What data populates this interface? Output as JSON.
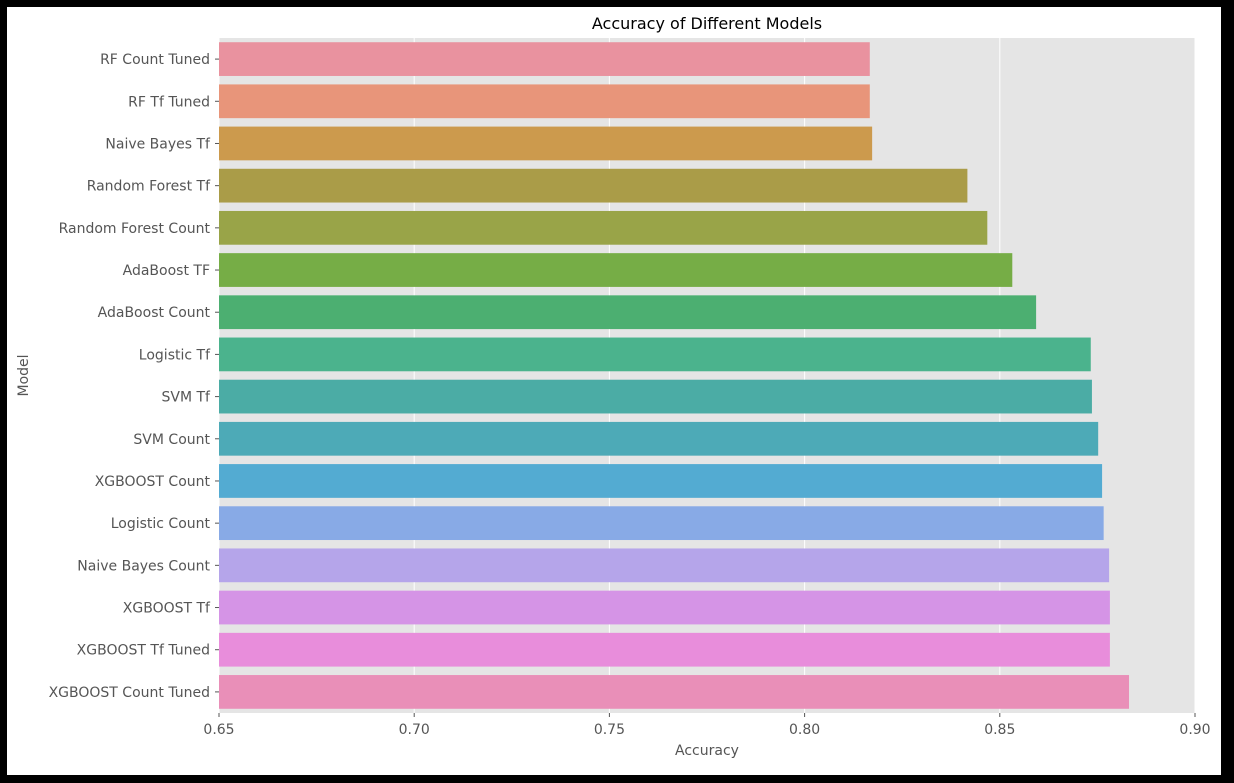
{
  "chart_data": {
    "type": "bar",
    "orientation": "horizontal",
    "title": "Accuracy of Different Models",
    "xlabel": "Accuracy",
    "ylabel": "Model",
    "xlim": [
      0.65,
      0.9
    ],
    "xticks": [
      "0.65",
      "0.70",
      "0.75",
      "0.80",
      "0.85",
      "0.90"
    ],
    "grid": true,
    "background": "#e5e5e5",
    "categories": [
      "RF Count Tuned",
      "RF Tf Tuned",
      "Naive Bayes Tf",
      "Random Forest Tf",
      "Random Forest Count",
      "AdaBoost TF",
      "AdaBoost Count",
      "Logistic Tf",
      "SVM Tf",
      "SVM Count",
      "XGBOOST Count",
      "Logistic Count",
      "Naive Bayes Count",
      "XGBOOST Tf",
      "XGBOOST Tf Tuned",
      "XGBOOST Count Tuned"
    ],
    "values": [
      0.8167,
      0.8167,
      0.8173,
      0.8417,
      0.8468,
      0.8532,
      0.8593,
      0.8733,
      0.8736,
      0.8752,
      0.8762,
      0.8766,
      0.878,
      0.8782,
      0.8782,
      0.8831
    ],
    "colors": [
      "#e9929f",
      "#e8957a",
      "#cc9a4d",
      "#aa9c48",
      "#99a448",
      "#76ad46",
      "#4caf71",
      "#4bb38d",
      "#4baca5",
      "#4daab7",
      "#53abd2",
      "#88aae6",
      "#b5a5ea",
      "#d594e6",
      "#e88ddb",
      "#e98fb8"
    ]
  }
}
